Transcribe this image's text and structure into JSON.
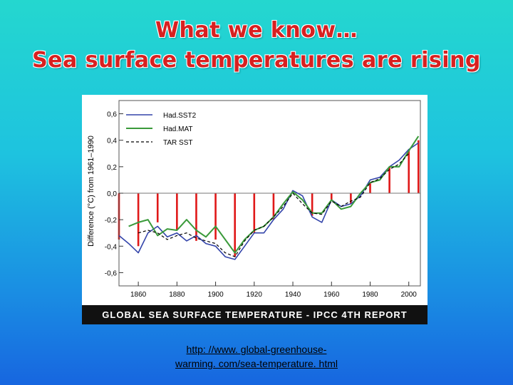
{
  "slide": {
    "title_line1": "What we know…",
    "title_line2": "Sea surface temperatures are rising",
    "caption": "GLOBAL SEA SURFACE TEMPERATURE - IPCC 4TH REPORT",
    "link_line1": "http: //www. global-greenhouse-",
    "link_line2": "warming. com/sea-temperature. html"
  },
  "colors": {
    "bar": "#e01818",
    "hadsst2": "#3344aa",
    "hadmat": "#3a9a3a",
    "tarsst": "#000000"
  },
  "chart_data": {
    "type": "bar",
    "title": "",
    "xlabel": "",
    "ylabel": "Difference (°C) from 1961–1990",
    "xlim": [
      1850,
      2006
    ],
    "ylim": [
      -0.7,
      0.7
    ],
    "x_ticks": [
      "1860",
      "1880",
      "1900",
      "1920",
      "1940",
      "1960",
      "1980",
      "2000"
    ],
    "y_ticks": [
      "0,6",
      "0,4",
      "0,2",
      "0,0",
      "-0,2",
      "-0,4",
      "-0,6"
    ],
    "legend_position": "top-left",
    "bar_years": [
      1850,
      1860,
      1870,
      1880,
      1890,
      1900,
      1910,
      1920,
      1930,
      1940,
      1950,
      1960,
      1970,
      1980,
      1990,
      2000,
      2005
    ],
    "bar_values": [
      -0.35,
      -0.4,
      -0.22,
      -0.28,
      -0.36,
      -0.35,
      -0.48,
      -0.3,
      -0.2,
      0.02,
      -0.17,
      -0.05,
      -0.08,
      0.08,
      0.2,
      0.33,
      0.4
    ],
    "series": [
      {
        "name": "Had.SST2",
        "x": [
          1850,
          1855,
          1860,
          1865,
          1870,
          1875,
          1880,
          1885,
          1890,
          1895,
          1900,
          1905,
          1910,
          1915,
          1920,
          1925,
          1930,
          1935,
          1940,
          1945,
          1950,
          1955,
          1960,
          1965,
          1970,
          1975,
          1980,
          1985,
          1990,
          1995,
          2000,
          2005
        ],
        "values": [
          -0.32,
          -0.38,
          -0.45,
          -0.3,
          -0.25,
          -0.33,
          -0.3,
          -0.36,
          -0.32,
          -0.38,
          -0.4,
          -0.48,
          -0.5,
          -0.4,
          -0.3,
          -0.3,
          -0.2,
          -0.12,
          0.02,
          -0.02,
          -0.18,
          -0.22,
          -0.05,
          -0.1,
          -0.08,
          -0.02,
          0.1,
          0.12,
          0.2,
          0.25,
          0.33,
          0.38
        ]
      },
      {
        "name": "Had.MAT",
        "x": [
          1855,
          1860,
          1865,
          1870,
          1875,
          1880,
          1885,
          1890,
          1895,
          1900,
          1905,
          1910,
          1915,
          1920,
          1925,
          1930,
          1935,
          1940,
          1945,
          1950,
          1955,
          1960,
          1965,
          1970,
          1975,
          1980,
          1985,
          1990,
          1995,
          2000,
          2005
        ],
        "values": [
          -0.25,
          -0.22,
          -0.2,
          -0.32,
          -0.27,
          -0.28,
          -0.2,
          -0.28,
          -0.33,
          -0.25,
          -0.35,
          -0.45,
          -0.35,
          -0.28,
          -0.25,
          -0.18,
          -0.08,
          0.01,
          -0.05,
          -0.15,
          -0.15,
          -0.05,
          -0.12,
          -0.1,
          0.0,
          0.08,
          0.1,
          0.2,
          0.2,
          0.32,
          0.43
        ]
      },
      {
        "name": "TAR SST",
        "x": [
          1860,
          1865,
          1870,
          1875,
          1880,
          1885,
          1890,
          1895,
          1900,
          1905,
          1910,
          1915,
          1920,
          1925,
          1930,
          1935,
          1940,
          1945,
          1950,
          1955,
          1960,
          1965,
          1970,
          1975,
          1980,
          1985,
          1990,
          1995,
          2000
        ],
        "values": [
          -0.3,
          -0.28,
          -0.3,
          -0.35,
          -0.32,
          -0.3,
          -0.34,
          -0.36,
          -0.38,
          -0.45,
          -0.48,
          -0.36,
          -0.28,
          -0.25,
          -0.18,
          -0.1,
          0.0,
          -0.08,
          -0.15,
          -0.16,
          -0.06,
          -0.1,
          -0.06,
          -0.03,
          0.08,
          0.11,
          0.18,
          0.22,
          0.3
        ]
      }
    ]
  }
}
